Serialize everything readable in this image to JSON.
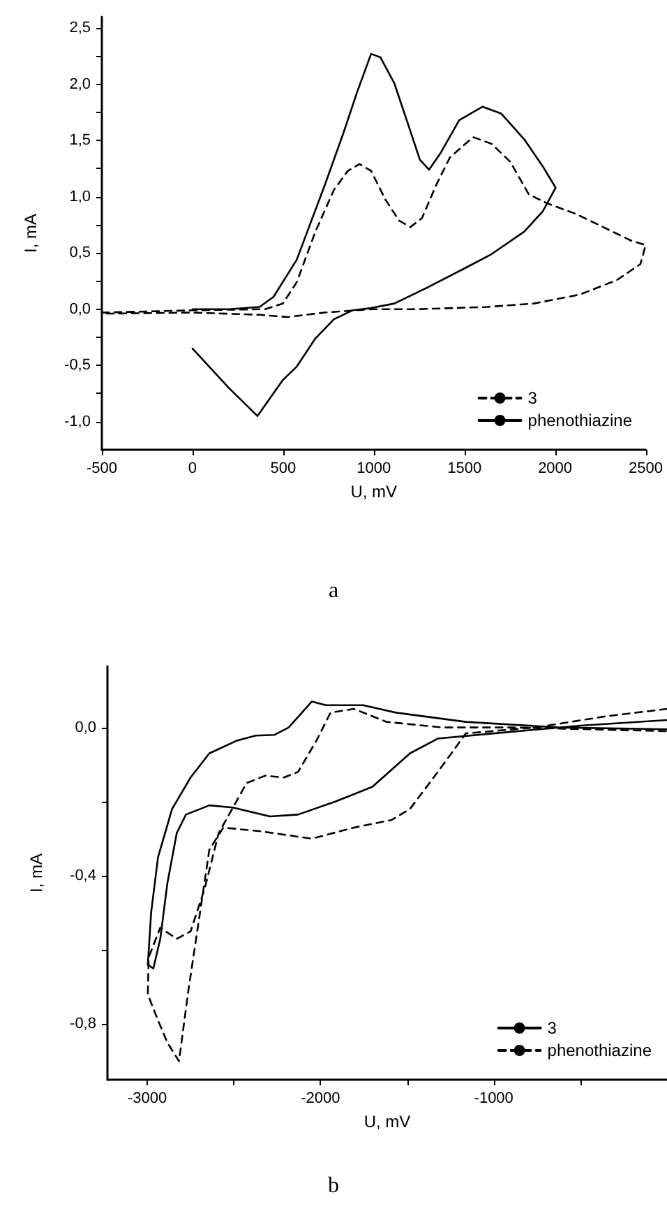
{
  "chart_data": [
    {
      "type": "line",
      "title": "a",
      "xlabel": "U, mV",
      "ylabel": "I, mA",
      "xlim": [
        -500,
        2500
      ],
      "xticks": [
        -500,
        0,
        500,
        1000,
        1500,
        2000,
        2500
      ],
      "ylim": [
        -1.25,
        2.6
      ],
      "yticks": [
        {
          "value": -1.0,
          "label": "-1,0"
        },
        {
          "value": -0.75,
          "label": null
        },
        {
          "value": -0.5,
          "label": "-0,5"
        },
        {
          "value": -0.25,
          "label": null
        },
        {
          "value": 0,
          "label": "0,0"
        },
        {
          "value": 0.25,
          "label": null
        },
        {
          "value": 0.5,
          "label": "0,5"
        },
        {
          "value": 0.75,
          "label": null
        },
        {
          "value": 1.0,
          "label": "1,0"
        },
        {
          "value": 1.25,
          "label": null
        },
        {
          "value": 1.5,
          "label": "1,5"
        },
        {
          "value": 1.75,
          "label": null
        },
        {
          "value": 2.0,
          "label": "2,0"
        },
        {
          "value": 2.25,
          "label": null
        },
        {
          "value": 2.5,
          "label": "2,5"
        }
      ],
      "grid": false,
      "legend": "bottom right",
      "marker": "none",
      "series": [
        {
          "name": "3",
          "color": "#000000",
          "line_style": "dashed",
          "x": [
            -500,
            0,
            400,
            498,
            575,
            678,
            780,
            857,
            921,
            985,
            1062,
            1138,
            1202,
            1266,
            1343,
            1420,
            1548,
            1650,
            1753,
            1855,
            1958,
            2111,
            2265,
            2419,
            2500,
            2470,
            2342,
            2137,
            1881,
            1625,
            1241,
            985,
            729,
            524,
            370,
            0,
            -500
          ],
          "values": [
            -0.03,
            -0.01,
            0.0,
            0.05,
            0.24,
            0.69,
            1.06,
            1.23,
            1.29,
            1.23,
            0.98,
            0.79,
            0.73,
            0.81,
            1.1,
            1.35,
            1.53,
            1.47,
            1.31,
            1.02,
            0.94,
            0.85,
            0.73,
            0.61,
            0.57,
            0.4,
            0.26,
            0.13,
            0.05,
            0.02,
            0.0,
            0.0,
            -0.03,
            -0.07,
            -0.05,
            -0.03,
            -0.04
          ]
        },
        {
          "name": "phenothiazine",
          "color": "#000000",
          "line_style": "solid",
          "x": [
            0,
            200,
            370,
            447,
            575,
            729,
            831,
            908,
            985,
            1036,
            1113,
            1190,
            1254,
            1305,
            1369,
            1471,
            1599,
            1702,
            1830,
            1932,
            2003,
            1932,
            1830,
            1650,
            1497,
            1292,
            1113,
            985,
            882,
            780,
            678,
            575,
            498,
            358,
            200,
            0
          ],
          "values": [
            0.0,
            0.0,
            0.02,
            0.11,
            0.44,
            1.1,
            1.56,
            1.93,
            2.27,
            2.24,
            2.01,
            1.64,
            1.33,
            1.24,
            1.39,
            1.68,
            1.8,
            1.74,
            1.51,
            1.27,
            1.08,
            0.87,
            0.69,
            0.49,
            0.36,
            0.19,
            0.05,
            0.01,
            -0.01,
            -0.09,
            -0.26,
            -0.51,
            -0.63,
            -0.95,
            -0.7,
            -0.35
          ]
        }
      ]
    },
    {
      "type": "line",
      "title": "b",
      "xlabel": "U, mV",
      "ylabel": "I, mA",
      "xlim": [
        -3230,
        0
      ],
      "xticks": [
        -3000,
        {
          "value": -2500,
          "label": null
        },
        -2000,
        {
          "value": -1500,
          "label": null
        },
        -1000,
        {
          "value": -500,
          "label": null
        }
      ],
      "ylim": [
        -0.95,
        0.165
      ],
      "yticks": [
        {
          "value": -0.8,
          "label": "-0,8"
        },
        {
          "value": -0.6,
          "label": null
        },
        {
          "value": -0.4,
          "label": "-0,4"
        },
        {
          "value": -0.2,
          "label": null
        },
        {
          "value": 0,
          "label": "0,0"
        }
      ],
      "grid": false,
      "legend": "bottom right",
      "marker": "none",
      "series": [
        {
          "name": "3",
          "color": "#000000",
          "line_style": "solid",
          "x": [
            0,
            -500,
            -1000,
            -1323,
            -1484,
            -1700,
            -1915,
            -2130,
            -2292,
            -2507,
            -2642,
            -2777,
            -2830,
            -2884,
            -2925,
            -2965,
            -2997,
            -2978,
            -2938,
            -2857,
            -2750,
            -2642,
            -2480,
            -2373,
            -2265,
            -2184,
            -2050,
            -1969,
            -1754,
            -1565,
            -1161,
            -622,
            0
          ],
          "values": [
            0.02,
            0.005,
            -0.016,
            -0.03,
            -0.07,
            -0.16,
            -0.2,
            -0.235,
            -0.24,
            -0.216,
            -0.21,
            -0.235,
            -0.285,
            -0.42,
            -0.57,
            -0.65,
            -0.64,
            -0.5,
            -0.35,
            -0.22,
            -0.135,
            -0.07,
            -0.035,
            -0.022,
            -0.02,
            0.0,
            0.07,
            0.06,
            0.06,
            0.04,
            0.015,
            0.0,
            -0.005
          ]
        },
        {
          "name": "phenothiazine",
          "color": "#000000",
          "line_style": "dashed",
          "x": [
            0,
            -354,
            -758,
            -1161,
            -1323,
            -1484,
            -1592,
            -1807,
            -2050,
            -2346,
            -2561,
            -2642,
            -2696,
            -2763,
            -2817,
            -2884,
            -2938,
            -2997,
            -2992,
            -2925,
            -2830,
            -2750,
            -2669,
            -2588,
            -2427,
            -2319,
            -2211,
            -2130,
            -2023,
            -1942,
            -1807,
            -1619,
            -1296,
            -892,
            0
          ],
          "values": [
            0.05,
            0.03,
            0.0,
            -0.016,
            -0.12,
            -0.22,
            -0.25,
            -0.27,
            -0.3,
            -0.28,
            -0.27,
            -0.33,
            -0.5,
            -0.71,
            -0.9,
            -0.85,
            -0.79,
            -0.72,
            -0.62,
            -0.54,
            -0.57,
            -0.55,
            -0.435,
            -0.285,
            -0.15,
            -0.13,
            -0.135,
            -0.12,
            -0.035,
            0.04,
            0.05,
            0.015,
            0.0,
            0.0,
            -0.01
          ]
        }
      ]
    }
  ]
}
